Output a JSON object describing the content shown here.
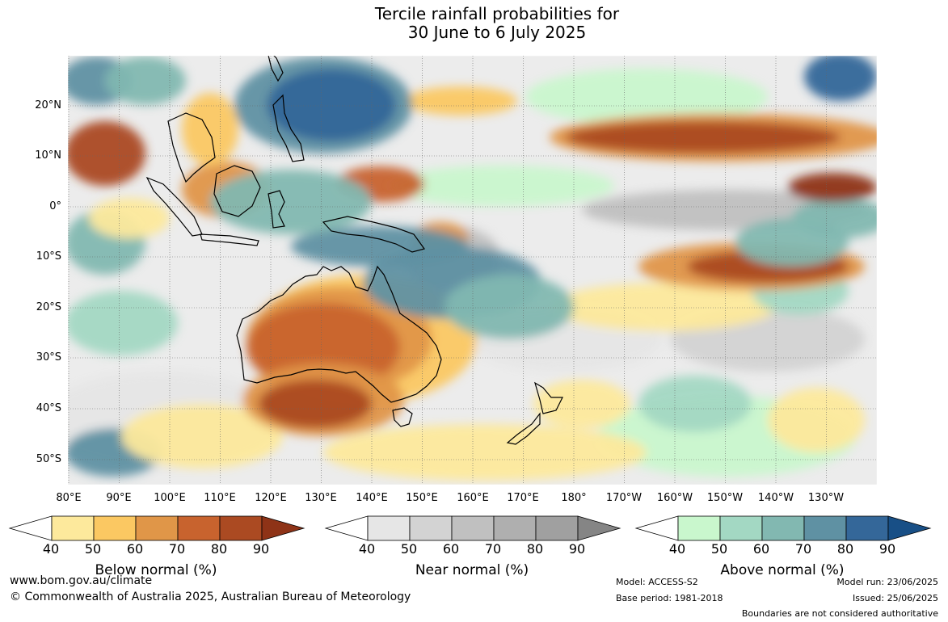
{
  "title": {
    "line1": "Tercile rainfall probabilities for",
    "line2": "30 June to 6 July 2025"
  },
  "latitude_labels": [
    "20°N",
    "10°N",
    "0°",
    "10°S",
    "20°S",
    "30°S",
    "40°S",
    "50°S"
  ],
  "longitude_labels": [
    "80°E",
    "90°E",
    "100°E",
    "110°E",
    "120°E",
    "130°E",
    "140°E",
    "150°E",
    "160°E",
    "170°E",
    "180°",
    "170°W",
    "160°W",
    "150°W",
    "140°W",
    "130°W"
  ],
  "colorbars": [
    {
      "label": "Below normal (%)",
      "ticks": [
        "40",
        "50",
        "60",
        "70",
        "80",
        "90"
      ],
      "colors": [
        "#ffffff",
        "#fde99c",
        "#fbc862",
        "#e09648",
        "#c8632e",
        "#ab4a22",
        "#8e3317"
      ]
    },
    {
      "label": "Near normal (%)",
      "ticks": [
        "40",
        "50",
        "60",
        "70",
        "80",
        "90"
      ],
      "colors": [
        "#ffffff",
        "#e6e6e6",
        "#d3d3d3",
        "#c0c0c0",
        "#afafaf",
        "#a0a0a0",
        "#858585"
      ]
    },
    {
      "label": "Above normal (%)",
      "ticks": [
        "40",
        "50",
        "60",
        "70",
        "80",
        "90"
      ],
      "colors": [
        "#ffffff",
        "#c9f7cd",
        "#a3d8c3",
        "#82b8b1",
        "#5f91a3",
        "#346799",
        "#184f86"
      ]
    }
  ],
  "footer": {
    "website": "www.bom.gov.au/climate",
    "copyright": "© Commonwealth of Australia 2025, Australian Bureau of Meteorology",
    "model": "Model: ACCESS-S2",
    "base_period": "Base period: 1981-2018",
    "model_run": "Model run: 23/06/2025",
    "issued": "Issued: 25/06/2025",
    "disclaimer": "Boundaries are not considered authoritative"
  }
}
